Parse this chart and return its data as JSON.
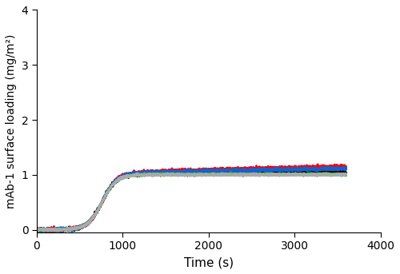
{
  "title": "",
  "xlabel": "Time (s)",
  "ylabel": "mAb-1 surface loading (mg/m²)",
  "xlim": [
    0,
    4000
  ],
  "ylim": [
    -0.05,
    4.0
  ],
  "yticks": [
    0,
    1,
    2,
    3,
    4
  ],
  "xticks": [
    0,
    1000,
    2000,
    3000,
    4000
  ],
  "lines": [
    {
      "name": "black",
      "color": "#000000",
      "inflection": 760,
      "rise_rate": 0.012,
      "fast_plateau": 1.0,
      "slow_rate": 0.000365,
      "slow_shape": 0.62,
      "noise": 0.015,
      "seed": 1
    },
    {
      "name": "red",
      "color": "#ff0000",
      "inflection": 760,
      "rise_rate": 0.012,
      "fast_plateau": 1.0,
      "slow_rate": 0.00108,
      "slow_shape": 0.62,
      "noise": 0.015,
      "seed": 2
    },
    {
      "name": "blue",
      "color": "#1a5fcc",
      "inflection": 760,
      "rise_rate": 0.012,
      "fast_plateau": 1.0,
      "slow_rate": 0.00082,
      "slow_shape": 0.62,
      "noise": 0.015,
      "seed": 3
    },
    {
      "name": "green",
      "color": "#00cc00",
      "inflection": 760,
      "rise_rate": 0.012,
      "fast_plateau": 1.0,
      "slow_rate": 0.000145,
      "slow_shape": 0.55,
      "noise": 0.01,
      "seed": 4
    },
    {
      "name": "gray",
      "color": "#aaaaaa",
      "inflection": 760,
      "rise_rate": 0.012,
      "fast_plateau": 1.0,
      "slow_rate": 5.5e-05,
      "slow_shape": 0.5,
      "noise": 0.01,
      "seed": 5
    }
  ],
  "line_width": 1.8,
  "background_color": "#ffffff"
}
